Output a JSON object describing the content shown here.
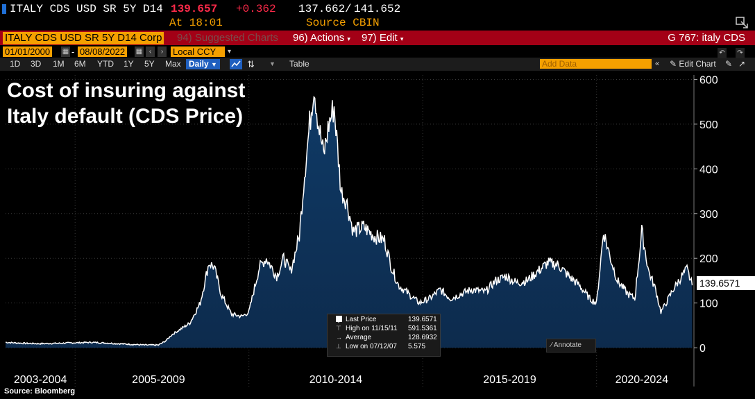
{
  "header": {
    "ticker": "ITALY CDS USD SR 5Y D14",
    "last": "139.657",
    "change": "+0.362",
    "range_low": "137.662",
    "range_sep": "/",
    "range_high": "141.652",
    "at_label": "At 18:01",
    "source_label": "Source CBIN"
  },
  "toolbar": {
    "security": "ITALY CDS USD SR 5Y D14 Corp",
    "suggested": "94) Suggested Charts",
    "actions": "96) Actions",
    "edit": "97) Edit",
    "chart_id": "G 767: italy CDS",
    "start_date": "01/01/2000",
    "dash": "-",
    "end_date": "08/08/2022",
    "currency": "Local CCY",
    "ranges": [
      "1D",
      "3D",
      "1M",
      "6M",
      "YTD",
      "1Y",
      "5Y",
      "Max"
    ],
    "frequency": "Daily",
    "table_label": "Table",
    "add_data_placeholder": "Add Data",
    "edit_chart": "Edit Chart"
  },
  "headline": {
    "line1": "Cost of insuring against",
    "line2": "Italy default (CDS Price)"
  },
  "legend": {
    "last_label": "Last Price",
    "last_value": "139.6571",
    "high_label": "High on 11/15/11",
    "high_value": "591.5361",
    "avg_label": "Average",
    "avg_value": "128.6932",
    "low_label": "Low on 07/12/07",
    "low_value": "5.575",
    "annotate": "Annotate"
  },
  "price_tag": "139.6571",
  "source": "Source: Bloomberg",
  "colors": {
    "background": "#000000",
    "area_fill": "#0d2b4d",
    "line": "#ffffff",
    "toolbar_red": "#a30016",
    "accent_orange": "#f5a000",
    "last_price_red": "#ff2a4a"
  },
  "chart_data": {
    "type": "area",
    "title": "",
    "xlabel": "",
    "ylabel": "",
    "ylim": [
      -20,
      610
    ],
    "yticks": [
      0,
      100,
      200,
      300,
      400,
      500,
      600
    ],
    "x_tick_labels": [
      "2003-2004",
      "2005-2009",
      "2010-2014",
      "2015-2019",
      "2020-2024"
    ],
    "xlim": [
      2003.0,
      2022.8
    ],
    "grid": true,
    "series": [
      {
        "values": [
          [
            2003.0,
            12
          ],
          [
            2003.5,
            10
          ],
          [
            2004.0,
            9
          ],
          [
            2004.5,
            10
          ],
          [
            2005.0,
            11
          ],
          [
            2005.5,
            12
          ],
          [
            2006.0,
            10
          ],
          [
            2006.5,
            8
          ],
          [
            2007.0,
            6
          ],
          [
            2007.4,
            6
          ],
          [
            2007.6,
            15
          ],
          [
            2007.8,
            30
          ],
          [
            2008.0,
            40
          ],
          [
            2008.3,
            55
          ],
          [
            2008.6,
            100
          ],
          [
            2008.85,
            190
          ],
          [
            2009.0,
            180
          ],
          [
            2009.2,
            120
          ],
          [
            2009.5,
            75
          ],
          [
            2009.8,
            70
          ],
          [
            2010.0,
            80
          ],
          [
            2010.3,
            180
          ],
          [
            2010.5,
            200
          ],
          [
            2010.8,
            160
          ],
          [
            2011.0,
            200
          ],
          [
            2011.2,
            170
          ],
          [
            2011.45,
            250
          ],
          [
            2011.6,
            390
          ],
          [
            2011.87,
            590
          ],
          [
            2012.0,
            500
          ],
          [
            2012.15,
            430
          ],
          [
            2012.3,
            500
          ],
          [
            2012.45,
            540
          ],
          [
            2012.65,
            350
          ],
          [
            2012.8,
            330
          ],
          [
            2013.0,
            260
          ],
          [
            2013.3,
            270
          ],
          [
            2013.6,
            250
          ],
          [
            2013.9,
            240
          ],
          [
            2014.1,
            180
          ],
          [
            2014.3,
            140
          ],
          [
            2014.6,
            120
          ],
          [
            2014.9,
            100
          ],
          [
            2015.2,
            110
          ],
          [
            2015.5,
            130
          ],
          [
            2015.8,
            110
          ],
          [
            2016.1,
            120
          ],
          [
            2016.4,
            130
          ],
          [
            2016.8,
            125
          ],
          [
            2017.1,
            150
          ],
          [
            2017.4,
            160
          ],
          [
            2017.7,
            145
          ],
          [
            2018.0,
            150
          ],
          [
            2018.3,
            170
          ],
          [
            2018.6,
            190
          ],
          [
            2018.9,
            185
          ],
          [
            2019.2,
            160
          ],
          [
            2019.5,
            140
          ],
          [
            2019.8,
            110
          ],
          [
            2020.0,
            100
          ],
          [
            2020.2,
            260
          ],
          [
            2020.4,
            200
          ],
          [
            2020.6,
            150
          ],
          [
            2020.9,
            120
          ],
          [
            2021.1,
            110
          ],
          [
            2021.3,
            260
          ],
          [
            2021.5,
            170
          ],
          [
            2021.7,
            130
          ],
          [
            2021.85,
            80
          ],
          [
            2022.0,
            100
          ],
          [
            2022.2,
            130
          ],
          [
            2022.45,
            160
          ],
          [
            2022.6,
            175
          ],
          [
            2022.75,
            139.66
          ]
        ]
      }
    ]
  }
}
